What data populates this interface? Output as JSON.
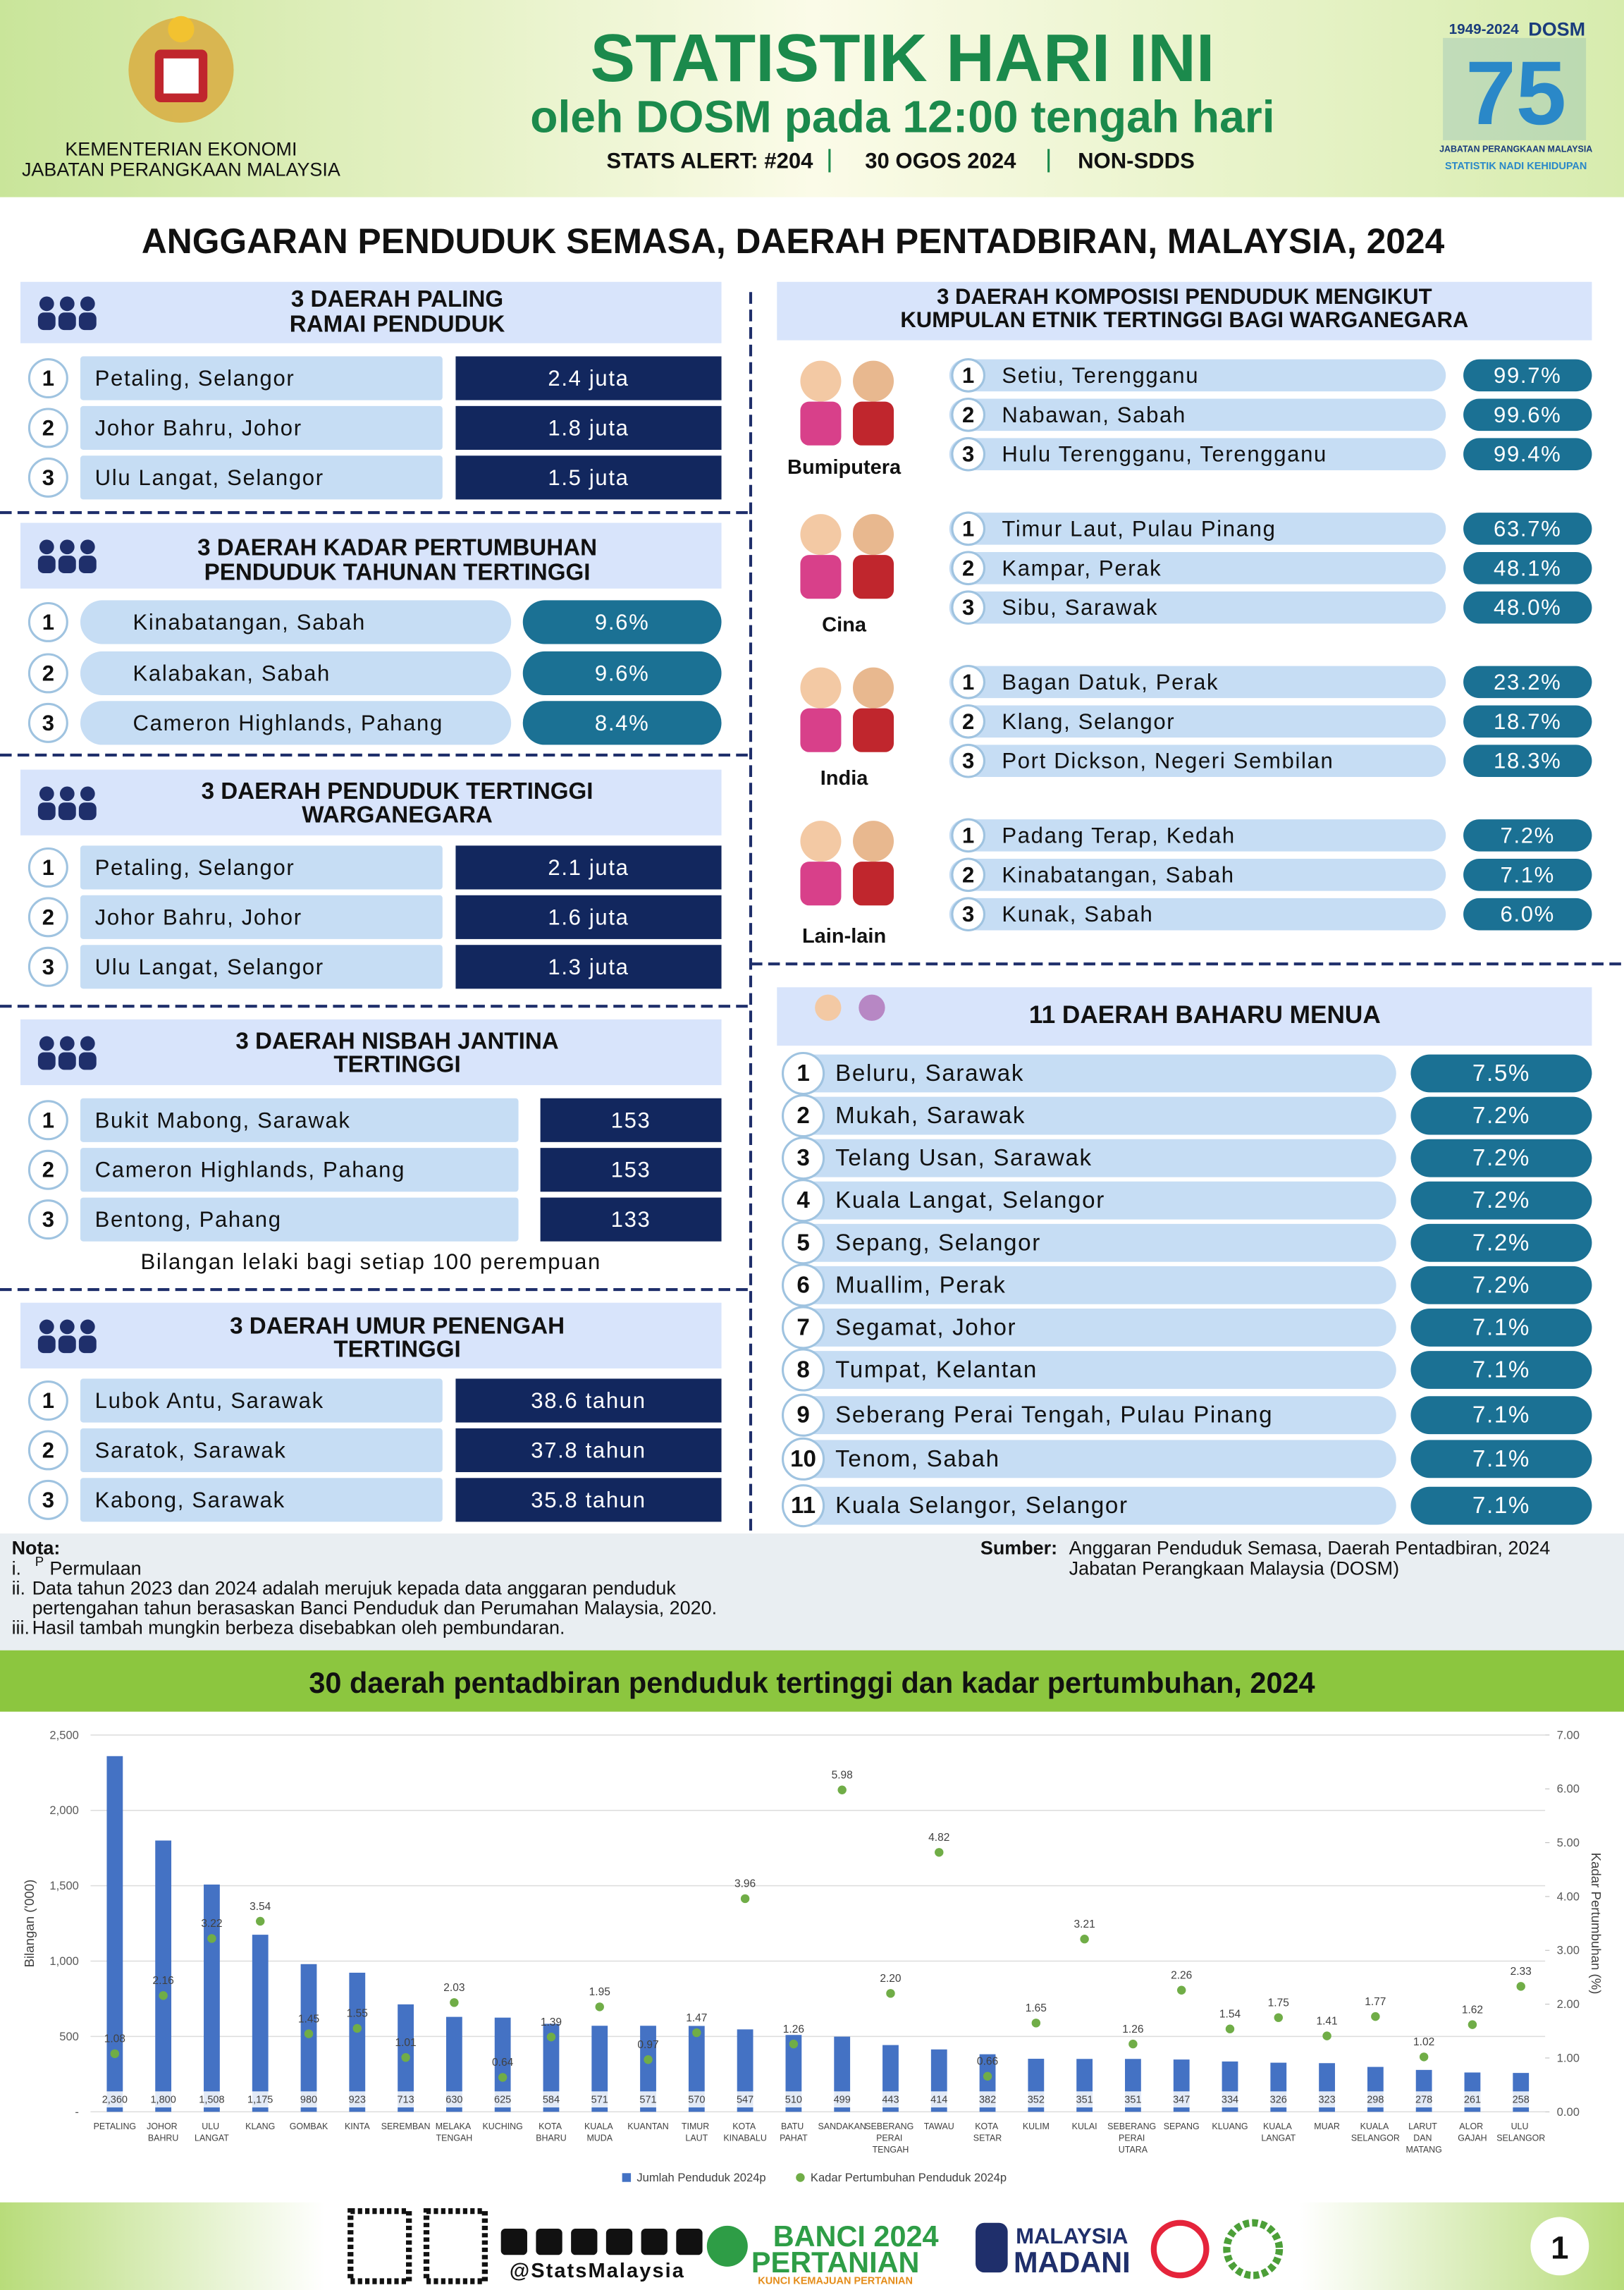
{
  "header": {
    "ministry": [
      "KEMENTERIAN EKONOMI",
      "JABATAN PERANGKAAN MALAYSIA"
    ],
    "title": "STATISTIK HARI INI",
    "subtitle": "oleh DOSM pada 12:00 tengah hari",
    "alert": "STATS ALERT: #204",
    "date": "30 OGOS 2024",
    "sdds": "NON-SDDS",
    "logo": {
      "years": "1949-2024",
      "brand": "DOSM",
      "number": "75",
      "org": "JABATAN PERANGKAAN MALAYSIA",
      "tagline": "STATISTIK NADI KEHIDUPAN"
    }
  },
  "title": "ANGGARAN PENDUDUK SEMASA, DAERAH PENTADBIRAN, MALAYSIA, 2024",
  "left_sections": [
    {
      "title": [
        "3 DAERAH PALING",
        "RAMAI PENDUDUK"
      ],
      "rows": [
        {
          "rank": 1,
          "name": "Petaling, Selangor",
          "value": "2.4 juta"
        },
        {
          "rank": 2,
          "name": "Johor Bahru, Johor",
          "value": "1.8 juta"
        },
        {
          "rank": 3,
          "name": "Ulu Langat, Selangor",
          "value": "1.5 juta"
        }
      ]
    },
    {
      "title": [
        "3 DAERAH KADAR PERTUMBUHAN",
        "PENDUDUK TAHUNAN TERTINGGI"
      ],
      "rows": [
        {
          "rank": 1,
          "name": "Kinabatangan, Sabah",
          "value": "9.6%"
        },
        {
          "rank": 2,
          "name": "Kalabakan, Sabah",
          "value": "9.6%"
        },
        {
          "rank": 3,
          "name": "Cameron Highlands, Pahang",
          "value": "8.4%"
        }
      ]
    },
    {
      "title": [
        "3 DAERAH PENDUDUK TERTINGGI",
        "WARGANEGARA"
      ],
      "rows": [
        {
          "rank": 1,
          "name": "Petaling, Selangor",
          "value": "2.1 juta"
        },
        {
          "rank": 2,
          "name": "Johor Bahru, Johor",
          "value": "1.6 juta"
        },
        {
          "rank": 3,
          "name": "Ulu Langat, Selangor",
          "value": "1.3 juta"
        }
      ]
    },
    {
      "title": [
        "3 DAERAH NISBAH JANTINA",
        "TERTINGGI"
      ],
      "rows": [
        {
          "rank": 1,
          "name": "Bukit Mabong, Sarawak",
          "value": "153"
        },
        {
          "rank": 2,
          "name": "Cameron Highlands, Pahang",
          "value": "153"
        },
        {
          "rank": 3,
          "name": "Bentong, Pahang",
          "value": "133"
        }
      ],
      "note": "Bilangan lelaki bagi setiap 100 perempuan"
    },
    {
      "title": [
        "3 DAERAH UMUR PENENGAH",
        "TERTINGGI"
      ],
      "rows": [
        {
          "rank": 1,
          "name": "Lubok Antu, Sarawak",
          "value": "38.6 tahun"
        },
        {
          "rank": 2,
          "name": "Saratok, Sarawak",
          "value": "37.8 tahun"
        },
        {
          "rank": 3,
          "name": "Kabong, Sarawak",
          "value": "35.8 tahun"
        }
      ]
    }
  ],
  "ethnic": {
    "title": [
      "3 DAERAH KOMPOSISI PENDUDUK MENGIKUT",
      "KUMPULAN ETNIK TERTINGGI BAGI WARGANEGARA"
    ],
    "groups": [
      {
        "label": "Bumiputera",
        "rows": [
          {
            "rank": 1,
            "name": "Setiu, Terengganu",
            "value": "99.7%"
          },
          {
            "rank": 2,
            "name": "Nabawan, Sabah",
            "value": "99.6%"
          },
          {
            "rank": 3,
            "name": "Hulu Terengganu, Terengganu",
            "value": "99.4%"
          }
        ]
      },
      {
        "label": "Cina",
        "rows": [
          {
            "rank": 1,
            "name": "Timur Laut, Pulau Pinang",
            "value": "63.7%"
          },
          {
            "rank": 2,
            "name": "Kampar, Perak",
            "value": "48.1%"
          },
          {
            "rank": 3,
            "name": "Sibu, Sarawak",
            "value": "48.0%"
          }
        ]
      },
      {
        "label": "India",
        "rows": [
          {
            "rank": 1,
            "name": "Bagan Datuk, Perak",
            "value": "23.2%"
          },
          {
            "rank": 2,
            "name": "Klang, Selangor",
            "value": "18.7%"
          },
          {
            "rank": 3,
            "name": "Port Dickson, Negeri Sembilan",
            "value": "18.3%"
          }
        ]
      },
      {
        "label": "Lain-lain",
        "rows": [
          {
            "rank": 1,
            "name": "Padang Terap, Kedah",
            "value": "7.2%"
          },
          {
            "rank": 2,
            "name": "Kinabatangan, Sabah",
            "value": "7.1%"
          },
          {
            "rank": 3,
            "name": "Kunak, Sabah",
            "value": "6.0%"
          }
        ]
      }
    ]
  },
  "ageing": {
    "title": "11 DAERAH BAHARU MENUA",
    "rows": [
      {
        "rank": 1,
        "name": "Beluru, Sarawak",
        "value": "7.5%"
      },
      {
        "rank": 2,
        "name": "Mukah, Sarawak",
        "value": "7.2%"
      },
      {
        "rank": 3,
        "name": "Telang Usan, Sarawak",
        "value": "7.2%"
      },
      {
        "rank": 4,
        "name": "Kuala Langat, Selangor",
        "value": "7.2%"
      },
      {
        "rank": 5,
        "name": "Sepang, Selangor",
        "value": "7.2%"
      },
      {
        "rank": 6,
        "name": "Muallim, Perak",
        "value": "7.2%"
      },
      {
        "rank": 7,
        "name": "Segamat, Johor",
        "value": "7.1%"
      },
      {
        "rank": 8,
        "name": "Tumpat, Kelantan",
        "value": "7.1%"
      },
      {
        "rank": 9,
        "name": "Seberang Perai Tengah, Pulau Pinang",
        "value": "7.1%"
      },
      {
        "rank": 10,
        "name": "Tenom, Sabah",
        "value": "7.1%"
      },
      {
        "rank": 11,
        "name": "Kuala Selangor, Selangor",
        "value": "7.1%"
      }
    ]
  },
  "notes": {
    "heading": "Nota:",
    "items": [
      {
        "marker": "i.",
        "sup": "P",
        "lines": [
          "Permulaan"
        ]
      },
      {
        "marker": "ii.",
        "lines": [
          "Data tahun 2023 dan 2024 adalah merujuk kepada data anggaran penduduk",
          "pertengahan tahun berasaskan Banci Penduduk dan Perumahan Malaysia, 2020."
        ]
      },
      {
        "marker": "iii.",
        "lines": [
          "Hasil tambah mungkin berbeza disebabkan oleh pembundaran."
        ]
      }
    ],
    "source_label": "Sumber:",
    "source": [
      "Anggaran Penduduk Semasa, Daerah Pentadbiran, 2024",
      "Jabatan Perangkaan Malaysia (DOSM)"
    ]
  },
  "chart_data": {
    "type": "bar",
    "title": "30 daerah pentadbiran penduduk tertinggi dan kadar pertumbuhan, 2024",
    "y_label": "Bilangan ('000)",
    "y2_label": "Kadar Pertumbuhan (%)",
    "categories": [
      "PETALING",
      "JOHOR BAHRU",
      "ULU LANGAT",
      "KLANG",
      "GOMBAK",
      "KINTA",
      "SEREMBAN",
      "MELAKA TENGAH",
      "KUCHING",
      "KOTA BHARU",
      "KUALA MUDA",
      "KUANTAN",
      "TIMUR LAUT",
      "KOTA KINABALU",
      "BATU PAHAT",
      "SANDAKAN",
      "SEBERANG PERAI TENGAH",
      "TAWAU",
      "KOTA SETAR",
      "KULIM",
      "KULAI",
      "SEBERANG PERAI UTARA",
      "SEPANG",
      "KLUANG",
      "KUALA LANGAT",
      "MUAR",
      "KUALA SELANGOR",
      "LARUT DAN MATANG",
      "ALOR GAJAH",
      "ULU SELANGOR"
    ],
    "series": [
      {
        "name": "Jumlah Penduduk 2024p",
        "type": "bar",
        "color": "#4472c4",
        "values": [
          2360,
          1800,
          1508,
          1175,
          980,
          923,
          713,
          630,
          625,
          584,
          571,
          571,
          570,
          547,
          510,
          499,
          443,
          414,
          382,
          352,
          351,
          351,
          347,
          334,
          326,
          323,
          298,
          278,
          261,
          258
        ],
        "value_labels": [
          "2,360",
          "1,800",
          "1,508",
          "1,175",
          "980",
          "923",
          "713",
          "630",
          "625",
          "584",
          "571",
          "571",
          "570",
          "547",
          "510",
          "499",
          "443",
          "414",
          "382",
          "352",
          "351",
          "351",
          "347",
          "334",
          "326",
          "323",
          "298",
          "278",
          "261",
          "258"
        ]
      },
      {
        "name": "Kadar Pertumbuhan Penduduk 2024p",
        "type": "scatter",
        "axis": "y2",
        "color": "#70ad47",
        "values": [
          1.08,
          2.16,
          3.22,
          3.54,
          1.45,
          1.55,
          1.01,
          2.03,
          0.64,
          1.39,
          1.95,
          0.97,
          1.47,
          3.96,
          1.26,
          5.98,
          2.2,
          4.82,
          0.66,
          1.65,
          3.21,
          1.26,
          2.26,
          1.54,
          1.75,
          1.41,
          1.77,
          1.02,
          1.62,
          2.33
        ],
        "value_labels": [
          "1.08",
          "2.16",
          "3.22",
          "3.54",
          "1.45",
          "1.55",
          "1.01",
          "2.03",
          "0.64",
          "1.39",
          "1.95",
          "0.97",
          "1.47",
          "3.96",
          "1.26",
          "5.98",
          "2.20",
          "4.82",
          "0.66",
          "1.65",
          "3.21",
          "1.26",
          "2.26",
          "1.54",
          "1.75",
          "1.41",
          "1.77",
          "1.02",
          "1.62",
          "2.33"
        ]
      }
    ],
    "ylim": [
      0,
      2500
    ],
    "yticks": [
      {
        "value": 0,
        "label": "-"
      },
      500,
      {
        "value": 1000,
        "label": "1,000"
      },
      {
        "value": 1500,
        "label": "1,500"
      },
      {
        "value": 2000,
        "label": "2,000"
      },
      {
        "value": 2500,
        "label": "2,500"
      }
    ],
    "y2lim": [
      0,
      7
    ],
    "y2ticks": [
      {
        "value": 0,
        "label": "0.00"
      },
      {
        "value": 1,
        "label": "1.00"
      },
      {
        "value": 2,
        "label": "2.00"
      },
      {
        "value": 3,
        "label": "3.00"
      },
      {
        "value": 4,
        "label": "4.00"
      },
      {
        "value": 5,
        "label": "5.00"
      },
      {
        "value": 6,
        "label": "6.00"
      },
      {
        "value": 7,
        "label": "7.00"
      }
    ],
    "grid": true,
    "legend": "bottom"
  },
  "footer": {
    "handle": "@StatsMalaysia",
    "banci": [
      "BANCI 2024",
      "PERTANIAN",
      "KUNCI KEMAJUAN PERTANIAN"
    ],
    "madani": [
      "MALAYSIA",
      "MADANI"
    ],
    "page": "1"
  }
}
